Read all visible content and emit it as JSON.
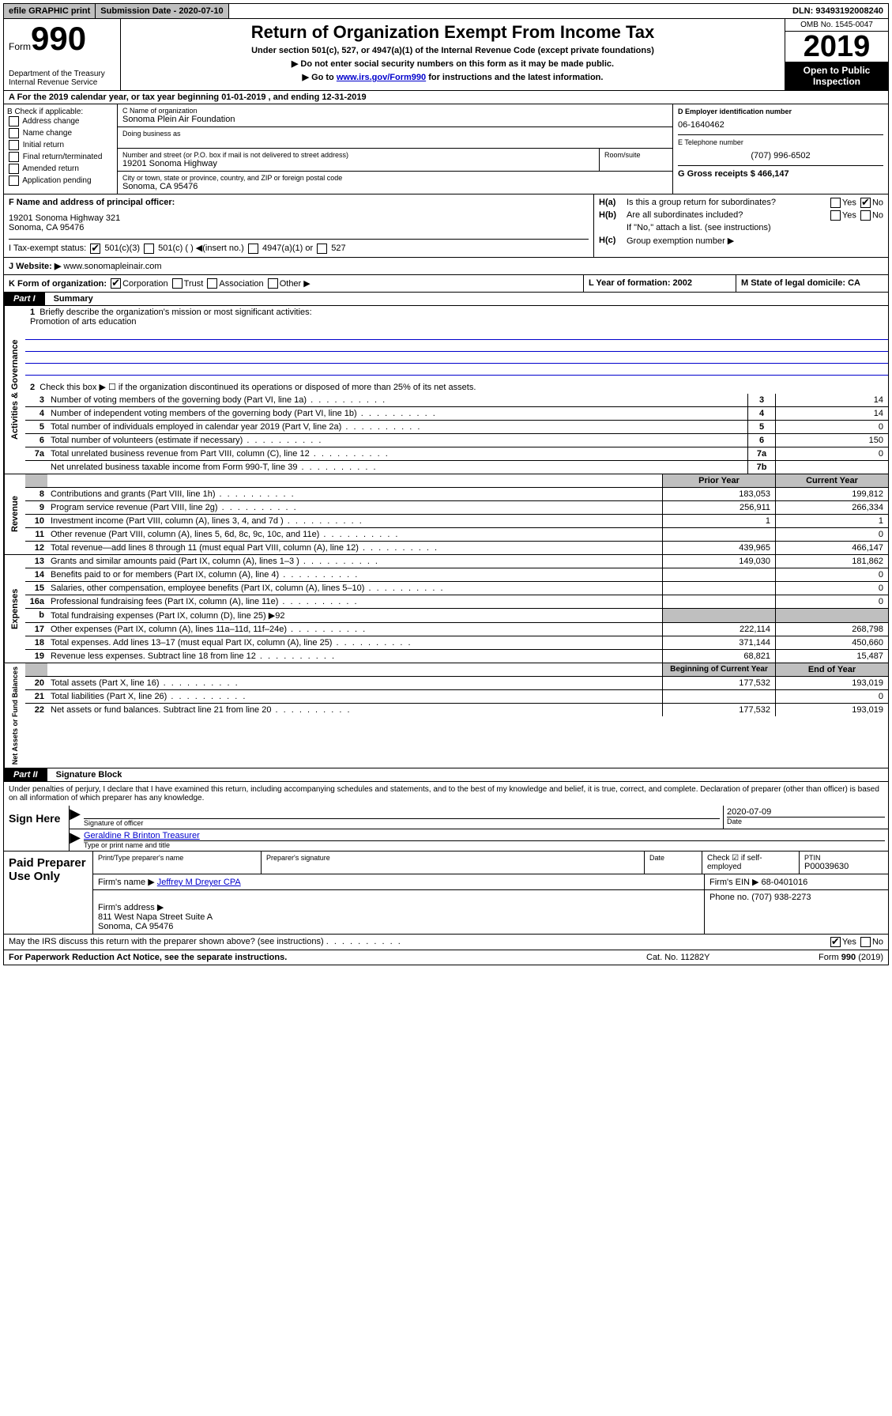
{
  "topbar": {
    "efile": "efile GRAPHIC print",
    "submission_label": "Submission Date - 2020-07-10",
    "dln": "DLN: 93493192008240"
  },
  "header": {
    "form_word": "Form",
    "form_num": "990",
    "dept": "Department of the Treasury\nInternal Revenue Service",
    "title": "Return of Organization Exempt From Income Tax",
    "subtitle1": "Under section 501(c), 527, or 4947(a)(1) of the Internal Revenue Code (except private foundations)",
    "subtitle2": "▶ Do not enter social security numbers on this form as it may be made public.",
    "subtitle3_pre": "▶ Go to ",
    "subtitle3_link": "www.irs.gov/Form990",
    "subtitle3_post": " for instructions and the latest information.",
    "omb": "OMB No. 1545-0047",
    "year": "2019",
    "open_public": "Open to Public Inspection"
  },
  "line_a": "A For the 2019 calendar year, or tax year beginning 01-01-2019    , and ending 12-31-2019",
  "col_b": {
    "label": "B Check if applicable:",
    "items": [
      "Address change",
      "Name change",
      "Initial return",
      "Final return/terminated",
      "Amended return",
      "Application pending"
    ]
  },
  "col_c": {
    "name_label": "C Name of organization",
    "name": "Sonoma Plein Air Foundation",
    "dba_label": "Doing business as",
    "addr_label": "Number and street (or P.O. box if mail is not delivered to street address)",
    "room_label": "Room/suite",
    "addr": "19201 Sonoma Highway",
    "city_label": "City or town, state or province, country, and ZIP or foreign postal code",
    "city": "Sonoma, CA  95476"
  },
  "col_d": {
    "ein_label": "D Employer identification number",
    "ein": "06-1640462",
    "phone_label": "E Telephone number",
    "phone": "(707) 996-6502",
    "gross_label": "G Gross receipts $ 466,147"
  },
  "col_f": {
    "label": "F  Name and address of principal officer:",
    "addr": "19201 Sonoma Highway 321\nSonoma, CA  95476"
  },
  "col_h": {
    "a_label": "H(a)",
    "a_text": "Is this a group return for subordinates?",
    "b_label": "H(b)",
    "b_text": "Are all subordinates included?",
    "b_note": "If \"No,\" attach a list. (see instructions)",
    "c_label": "H(c)",
    "c_text": "Group exemption number ▶"
  },
  "row_i": {
    "label": "I   Tax-exempt status:",
    "opts": [
      "501(c)(3)",
      "501(c) (   ) ◀(insert no.)",
      "4947(a)(1) or",
      "527"
    ]
  },
  "row_j": {
    "label": "J   Website: ▶",
    "value": "www.sonomapleinair.com"
  },
  "row_k": {
    "label": "K Form of organization:",
    "opts": [
      "Corporation",
      "Trust",
      "Association",
      "Other ▶"
    ],
    "l_label": "L Year of formation: 2002",
    "m_label": "M State of legal domicile: CA"
  },
  "part1": {
    "header": "Part I",
    "title": "Summary"
  },
  "summary": {
    "q1": "Briefly describe the organization's mission or most significant activities:",
    "mission": "Promotion of arts education",
    "q2": "Check this box ▶ ☐  if the organization discontinued its operations or disposed of more than 25% of its net assets.",
    "rows_top": [
      {
        "n": "3",
        "label": "Number of voting members of the governing body (Part VI, line 1a)",
        "box": "3",
        "val": "14"
      },
      {
        "n": "4",
        "label": "Number of independent voting members of the governing body (Part VI, line 1b)",
        "box": "4",
        "val": "14"
      },
      {
        "n": "5",
        "label": "Total number of individuals employed in calendar year 2019 (Part V, line 2a)",
        "box": "5",
        "val": "0"
      },
      {
        "n": "6",
        "label": "Total number of volunteers (estimate if necessary)",
        "box": "6",
        "val": "150"
      },
      {
        "n": "7a",
        "label": "Total unrelated business revenue from Part VIII, column (C), line 12",
        "box": "7a",
        "val": "0"
      },
      {
        "n": "",
        "label": "Net unrelated business taxable income from Form 990-T, line 39",
        "box": "7b",
        "val": ""
      }
    ],
    "col_headers": {
      "prior": "Prior Year",
      "current": "Current Year"
    },
    "revenue_rows": [
      {
        "n": "8",
        "label": "Contributions and grants (Part VIII, line 1h)",
        "prior": "183,053",
        "curr": "199,812"
      },
      {
        "n": "9",
        "label": "Program service revenue (Part VIII, line 2g)",
        "prior": "256,911",
        "curr": "266,334"
      },
      {
        "n": "10",
        "label": "Investment income (Part VIII, column (A), lines 3, 4, and 7d )",
        "prior": "1",
        "curr": "1"
      },
      {
        "n": "11",
        "label": "Other revenue (Part VIII, column (A), lines 5, 6d, 8c, 9c, 10c, and 11e)",
        "prior": "",
        "curr": "0"
      },
      {
        "n": "12",
        "label": "Total revenue—add lines 8 through 11 (must equal Part VIII, column (A), line 12)",
        "prior": "439,965",
        "curr": "466,147"
      }
    ],
    "expense_rows": [
      {
        "n": "13",
        "label": "Grants and similar amounts paid (Part IX, column (A), lines 1–3 )",
        "prior": "149,030",
        "curr": "181,862"
      },
      {
        "n": "14",
        "label": "Benefits paid to or for members (Part IX, column (A), line 4)",
        "prior": "",
        "curr": "0"
      },
      {
        "n": "15",
        "label": "Salaries, other compensation, employee benefits (Part IX, column (A), lines 5–10)",
        "prior": "",
        "curr": "0"
      },
      {
        "n": "16a",
        "label": "Professional fundraising fees (Part IX, column (A), line 11e)",
        "prior": "",
        "curr": "0"
      },
      {
        "n": "b",
        "label": "Total fundraising expenses (Part IX, column (D), line 25) ▶92",
        "prior": "shaded",
        "curr": "shaded"
      },
      {
        "n": "17",
        "label": "Other expenses (Part IX, column (A), lines 11a–11d, 11f–24e)",
        "prior": "222,114",
        "curr": "268,798"
      },
      {
        "n": "18",
        "label": "Total expenses. Add lines 13–17 (must equal Part IX, column (A), line 25)",
        "prior": "371,144",
        "curr": "450,660"
      },
      {
        "n": "19",
        "label": "Revenue less expenses. Subtract line 18 from line 12",
        "prior": "68,821",
        "curr": "15,487"
      }
    ],
    "balance_headers": {
      "beg": "Beginning of Current Year",
      "end": "End of Year"
    },
    "balance_rows": [
      {
        "n": "20",
        "label": "Total assets (Part X, line 16)",
        "prior": "177,532",
        "curr": "193,019"
      },
      {
        "n": "21",
        "label": "Total liabilities (Part X, line 26)",
        "prior": "",
        "curr": "0"
      },
      {
        "n": "22",
        "label": "Net assets or fund balances. Subtract line 21 from line 20",
        "prior": "177,532",
        "curr": "193,019"
      }
    ],
    "vert_gov": "Activities & Governance",
    "vert_rev": "Revenue",
    "vert_exp": "Expenses",
    "vert_bal": "Net Assets or Fund Balances"
  },
  "part2": {
    "header": "Part II",
    "title": "Signature Block",
    "declaration": "Under penalties of perjury, I declare that I have examined this return, including accompanying schedules and statements, and to the best of my knowledge and belief, it is true, correct, and complete. Declaration of preparer (other than officer) is based on all information of which preparer has any knowledge.",
    "sign_here": "Sign Here",
    "sig_officer": "Signature of officer",
    "sig_date": "2020-07-09",
    "date_label": "Date",
    "officer_name": "Geraldine R Brinton  Treasurer",
    "type_name": "Type or print name and title",
    "paid": "Paid Preparer Use Only",
    "print_name_label": "Print/Type preparer's name",
    "prep_sig_label": "Preparer's signature",
    "date2_label": "Date",
    "check_if": "Check ☑ if self-employed",
    "ptin_label": "PTIN",
    "ptin": "P00039630",
    "firm_name_label": "Firm's name    ▶",
    "firm_name": "Jeffrey M Dreyer CPA",
    "firm_ein_label": "Firm's EIN ▶ 68-0401016",
    "firm_addr_label": "Firm's address ▶",
    "firm_addr": "811 West Napa Street Suite A\nSonoma, CA  95476",
    "phone_label": "Phone no. (707) 938-2273",
    "discuss": "May the IRS discuss this return with the preparer shown above? (see instructions)",
    "paperwork": "For Paperwork Reduction Act Notice, see the separate instructions.",
    "cat": "Cat. No. 11282Y",
    "form_footer": "Form 990 (2019)"
  }
}
